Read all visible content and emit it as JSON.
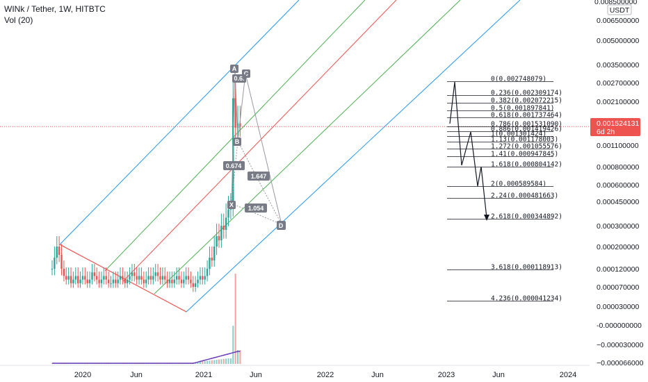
{
  "header": {
    "symbol_line": "WINk / Tether, 1W, HITBTC",
    "volume_line": "Vol (20)"
  },
  "price_axis": {
    "currency_badge": "USDT",
    "top_label": "0.008500000",
    "ticks": [
      {
        "label": "0.006500000",
        "price": 0.0065
      },
      {
        "label": "0.005000000",
        "price": 0.005
      },
      {
        "label": "0.003500000",
        "price": 0.0035
      },
      {
        "label": "0.002700000",
        "price": 0.0027
      },
      {
        "label": "0.002100000",
        "price": 0.0021
      },
      {
        "label": "0.001100000",
        "price": 0.0011
      },
      {
        "label": "0.000800000",
        "price": 0.0008
      },
      {
        "label": "0.000600000",
        "price": 0.0006
      },
      {
        "label": "0.000450000",
        "price": 0.00045
      },
      {
        "label": "0.000300000",
        "price": 0.0003
      },
      {
        "label": "0.000200000",
        "price": 0.0002
      },
      {
        "label": "0.000120000",
        "price": 0.00012
      },
      {
        "label": "0.000070000",
        "price": 7e-05
      },
      {
        "label": "0.000030000",
        "price": 3e-05
      },
      {
        "label": "-0.000000000",
        "price": 0
      },
      {
        "label": "−0.000030000",
        "price": -3e-05
      },
      {
        "label": "−0.000066000",
        "price": -6.6e-05
      }
    ],
    "last_price_label": "0.001524131",
    "countdown_label": "6d 2h",
    "last_price_color": "#ef5350"
  },
  "time_axis": {
    "labels": [
      "2020",
      "Jun",
      "2021",
      "Jun",
      "2022",
      "Jun",
      "2023",
      "Jun",
      "2024"
    ]
  },
  "pattern_points": [
    "A",
    "C",
    "B",
    "X",
    "D"
  ],
  "pattern_ratios": [
    "0.6.",
    "0.674",
    "1.647",
    "1.054"
  ],
  "fib_levels": [
    {
      "label": "0(0.002748079)",
      "price": 0.002748079
    },
    {
      "label": "0.236(0.002309174)",
      "price": 0.002309174
    },
    {
      "label": "0.382(0.002072215)",
      "price": 0.002072215
    },
    {
      "label": "0.5(0.001897841)",
      "price": 0.001897841
    },
    {
      "label": "0.618(0.001737464)",
      "price": 0.001737464
    },
    {
      "label": "0.786(0.001531090)",
      "price": 0.00153109
    },
    {
      "label": "0.886(0.001419426)",
      "price": 0.001419426
    },
    {
      "label": "1(0.001301424)",
      "price": 0.001301424
    },
    {
      "label": "1.13(0.001178003)",
      "price": 0.001178003
    },
    {
      "label": "1.272(0.001055576)",
      "price": 0.001055576
    },
    {
      "label": "1.41(0.000947845)",
      "price": 0.000947845
    },
    {
      "label": "1.618(0.000804142)",
      "price": 0.000804142
    },
    {
      "label": "2(0.000589584)",
      "price": 0.000589584
    },
    {
      "label": "2.24(0.000481663)",
      "price": 0.000481663
    },
    {
      "label": "2.618(0.000344892)",
      "price": 0.000344892
    },
    {
      "label": "3.618(0.000118913)",
      "price": 0.000118913
    },
    {
      "label": "4.236(0.000041234)",
      "price": 4.1234e-05
    }
  ],
  "colors": {
    "up_candle": "#26a69a",
    "down_candle": "#ef5350",
    "pitchfork_median": "#ef5350",
    "pitchfork_inner": "#4caf50",
    "pitchfork_outer": "#2196f3",
    "pattern_line": "#9598a1",
    "volume_ma": "#673ab7",
    "fib_line": "#131722"
  },
  "chart_data": {
    "type": "candlestick",
    "title": "WINk / Tether, 1W, HITBTC",
    "y_scale": "log",
    "series": [
      {
        "name": "WINk / Tether",
        "note": "weekly candles, approx. range 0.00006 to 0.0028 USDT"
      },
      {
        "name": "Vol (20)"
      }
    ],
    "last_price": 0.001524131,
    "fib_levels": [
      0,
      0.236,
      0.382,
      0.5,
      0.618,
      0.786,
      0.886,
      1,
      1.13,
      1.272,
      1.41,
      1.618,
      2,
      2.24,
      2.618,
      3.618,
      4.236
    ]
  }
}
